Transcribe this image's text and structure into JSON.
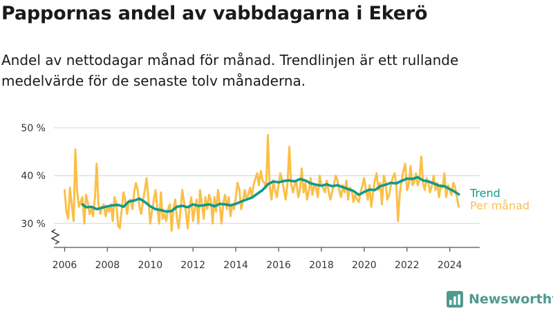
{
  "header": {
    "title": "Pappornas andel av vabbdagarna i Ekerö",
    "subtitle": "Andel av nettodagar månad för månad. Trendlinjen är ett rullande medelvärde för de senaste tolv månaderna."
  },
  "brand": {
    "name": "Newsworthy",
    "color": "#4e9a8e"
  },
  "chart_data": {
    "type": "line",
    "ylim": [
      25,
      50
    ],
    "xlim": [
      2005.5,
      2025.4
    ],
    "y_ticks": [
      {
        "value": 30,
        "label": "30 %"
      },
      {
        "value": 40,
        "label": "40 %"
      },
      {
        "value": 50,
        "label": "50 %"
      }
    ],
    "x_ticks": [
      {
        "value": 2006,
        "label": "2006"
      },
      {
        "value": 2008,
        "label": "2008"
      },
      {
        "value": 2010,
        "label": "2010"
      },
      {
        "value": 2012,
        "label": "2012"
      },
      {
        "value": 2014,
        "label": "2014"
      },
      {
        "value": 2016,
        "label": "2016"
      },
      {
        "value": 2018,
        "label": "2018"
      },
      {
        "value": 2020,
        "label": "2020"
      },
      {
        "value": 2022,
        "label": "2022"
      },
      {
        "value": 2024,
        "label": "2024"
      }
    ],
    "grid": true,
    "axis_break": true,
    "series": [
      {
        "name": "Trend",
        "color": "#0f9a8c",
        "x": [
          2006.83,
          2007.0,
          2007.25,
          2007.5,
          2007.75,
          2008.0,
          2008.25,
          2008.5,
          2008.75,
          2009.0,
          2009.25,
          2009.5,
          2009.75,
          2010.0,
          2010.25,
          2010.5,
          2010.75,
          2011.0,
          2011.25,
          2011.5,
          2011.75,
          2012.0,
          2012.25,
          2012.5,
          2012.75,
          2013.0,
          2013.25,
          2013.5,
          2013.75,
          2014.0,
          2014.25,
          2014.5,
          2014.75,
          2015.0,
          2015.25,
          2015.5,
          2015.75,
          2016.0,
          2016.25,
          2016.5,
          2016.75,
          2017.0,
          2017.25,
          2017.5,
          2017.75,
          2018.0,
          2018.25,
          2018.5,
          2018.75,
          2019.0,
          2019.25,
          2019.5,
          2019.75,
          2020.0,
          2020.25,
          2020.5,
          2020.75,
          2021.0,
          2021.25,
          2021.5,
          2021.75,
          2022.0,
          2022.25,
          2022.5,
          2022.75,
          2023.0,
          2023.25,
          2023.5,
          2023.75,
          2024.0,
          2024.25,
          2024.42
        ],
        "values": [
          34.0,
          33.4,
          33.5,
          33.0,
          33.3,
          33.6,
          33.8,
          33.9,
          33.5,
          34.6,
          34.8,
          35.2,
          34.5,
          33.6,
          33.0,
          32.8,
          32.5,
          32.6,
          33.5,
          33.7,
          33.4,
          34.0,
          33.7,
          33.8,
          34.0,
          33.6,
          34.1,
          34.0,
          33.8,
          34.1,
          34.6,
          35.0,
          35.4,
          36.2,
          37.0,
          38.2,
          38.8,
          38.6,
          38.9,
          39.0,
          38.8,
          39.3,
          39.0,
          38.4,
          38.1,
          37.9,
          38.2,
          37.8,
          38.0,
          37.6,
          37.2,
          36.8,
          36.0,
          36.6,
          37.1,
          37.0,
          37.8,
          38.1,
          38.5,
          38.4,
          38.9,
          39.4,
          39.3,
          39.7,
          39.0,
          38.8,
          38.4,
          37.9,
          37.8,
          37.2,
          36.6,
          36.1
        ]
      },
      {
        "name": "Per månad",
        "color": "#fbbf47",
        "x": [
          2006.0,
          2006.08,
          2006.17,
          2006.25,
          2006.33,
          2006.42,
          2006.5,
          2006.58,
          2006.67,
          2006.75,
          2006.83,
          2006.92,
          2007.0,
          2007.08,
          2007.17,
          2007.25,
          2007.33,
          2007.42,
          2007.5,
          2007.58,
          2007.67,
          2007.75,
          2007.83,
          2007.92,
          2008.0,
          2008.08,
          2008.17,
          2008.25,
          2008.33,
          2008.42,
          2008.5,
          2008.58,
          2008.67,
          2008.75,
          2008.83,
          2008.92,
          2009.0,
          2009.08,
          2009.17,
          2009.25,
          2009.33,
          2009.42,
          2009.5,
          2009.58,
          2009.67,
          2009.75,
          2009.83,
          2009.92,
          2010.0,
          2010.08,
          2010.17,
          2010.25,
          2010.33,
          2010.42,
          2010.5,
          2010.58,
          2010.67,
          2010.75,
          2010.83,
          2010.92,
          2011.0,
          2011.08,
          2011.17,
          2011.25,
          2011.33,
          2011.42,
          2011.5,
          2011.58,
          2011.67,
          2011.75,
          2011.83,
          2011.92,
          2012.0,
          2012.08,
          2012.17,
          2012.25,
          2012.33,
          2012.42,
          2012.5,
          2012.58,
          2012.67,
          2012.75,
          2012.83,
          2012.92,
          2013.0,
          2013.08,
          2013.17,
          2013.25,
          2013.33,
          2013.42,
          2013.5,
          2013.58,
          2013.67,
          2013.75,
          2013.83,
          2013.92,
          2014.0,
          2014.08,
          2014.17,
          2014.25,
          2014.33,
          2014.42,
          2014.5,
          2014.58,
          2014.67,
          2014.75,
          2014.83,
          2014.92,
          2015.0,
          2015.08,
          2015.17,
          2015.25,
          2015.33,
          2015.42,
          2015.5,
          2015.58,
          2015.67,
          2015.75,
          2015.83,
          2015.92,
          2016.0,
          2016.08,
          2016.17,
          2016.25,
          2016.33,
          2016.42,
          2016.5,
          2016.58,
          2016.67,
          2016.75,
          2016.83,
          2016.92,
          2017.0,
          2017.08,
          2017.17,
          2017.25,
          2017.33,
          2017.42,
          2017.5,
          2017.58,
          2017.67,
          2017.75,
          2017.83,
          2017.92,
          2018.0,
          2018.08,
          2018.17,
          2018.25,
          2018.33,
          2018.42,
          2018.5,
          2018.58,
          2018.67,
          2018.75,
          2018.83,
          2018.92,
          2019.0,
          2019.08,
          2019.17,
          2019.25,
          2019.33,
          2019.42,
          2019.5,
          2019.58,
          2019.67,
          2019.75,
          2019.83,
          2019.92,
          2020.0,
          2020.08,
          2020.17,
          2020.25,
          2020.33,
          2020.42,
          2020.5,
          2020.58,
          2020.67,
          2020.75,
          2020.83,
          2020.92,
          2021.0,
          2021.08,
          2021.17,
          2021.25,
          2021.33,
          2021.42,
          2021.5,
          2021.58,
          2021.67,
          2021.75,
          2021.83,
          2021.92,
          2022.0,
          2022.08,
          2022.17,
          2022.25,
          2022.33,
          2022.42,
          2022.5,
          2022.58,
          2022.67,
          2022.75,
          2022.83,
          2022.92,
          2023.0,
          2023.08,
          2023.17,
          2023.25,
          2023.33,
          2023.42,
          2023.5,
          2023.58,
          2023.67,
          2023.75,
          2023.83,
          2023.92,
          2024.0,
          2024.08,
          2024.17,
          2024.25,
          2024.33,
          2024.42
        ],
        "values": [
          37.0,
          32.5,
          31.0,
          37.5,
          34.0,
          30.5,
          45.5,
          37.0,
          33.5,
          34.5,
          35.5,
          30.0,
          36.0,
          34.5,
          32.0,
          33.0,
          31.5,
          35.5,
          42.5,
          34.0,
          32.0,
          33.5,
          34.0,
          31.5,
          33.5,
          32.5,
          34.0,
          30.5,
          35.5,
          34.0,
          29.5,
          29.0,
          33.0,
          36.5,
          35.0,
          32.0,
          34.5,
          35.0,
          33.0,
          36.5,
          38.5,
          37.0,
          33.5,
          32.0,
          35.0,
          37.0,
          39.5,
          35.0,
          30.0,
          32.5,
          35.0,
          37.0,
          33.5,
          30.0,
          36.5,
          31.0,
          32.0,
          30.5,
          33.0,
          34.0,
          28.5,
          33.0,
          35.0,
          31.0,
          29.0,
          33.0,
          37.0,
          34.5,
          32.5,
          29.0,
          33.0,
          35.5,
          30.5,
          33.0,
          35.0,
          30.0,
          37.0,
          34.0,
          31.0,
          35.5,
          33.0,
          36.0,
          35.0,
          30.0,
          35.5,
          32.5,
          37.0,
          34.0,
          30.0,
          34.5,
          36.0,
          33.0,
          35.5,
          31.5,
          34.0,
          33.0,
          35.5,
          38.5,
          37.0,
          33.0,
          34.5,
          37.0,
          35.0,
          36.0,
          37.5,
          35.5,
          38.0,
          39.5,
          40.5,
          38.0,
          41.0,
          39.0,
          38.5,
          37.5,
          48.5,
          38.0,
          35.0,
          39.0,
          37.0,
          35.5,
          38.0,
          40.5,
          39.0,
          37.0,
          35.0,
          38.5,
          46.0,
          38.5,
          36.5,
          38.0,
          39.0,
          35.5,
          37.0,
          41.5,
          36.5,
          38.5,
          35.0,
          37.0,
          39.5,
          36.0,
          38.0,
          37.5,
          35.5,
          40.0,
          38.0,
          37.5,
          36.5,
          39.0,
          37.0,
          35.0,
          36.5,
          38.0,
          40.0,
          39.0,
          37.0,
          35.5,
          38.0,
          36.5,
          39.0,
          35.0,
          37.5,
          37.0,
          34.5,
          36.0,
          35.0,
          34.5,
          36.5,
          38.0,
          39.5,
          37.0,
          35.0,
          38.0,
          33.5,
          36.5,
          39.0,
          40.5,
          37.0,
          38.5,
          34.0,
          40.0,
          38.5,
          35.0,
          36.0,
          38.0,
          39.5,
          40.5,
          38.0,
          30.5,
          36.5,
          39.0,
          41.0,
          42.5,
          37.0,
          38.0,
          42.0,
          38.0,
          38.5,
          40.5,
          38.0,
          39.0,
          44.0,
          38.5,
          37.0,
          39.5,
          38.5,
          36.5,
          38.0,
          40.0,
          37.0,
          38.5,
          35.5,
          38.0,
          37.5,
          40.5,
          35.5,
          38.0,
          37.0,
          36.0,
          38.5,
          37.5,
          35.5,
          33.5
        ]
      }
    ]
  }
}
